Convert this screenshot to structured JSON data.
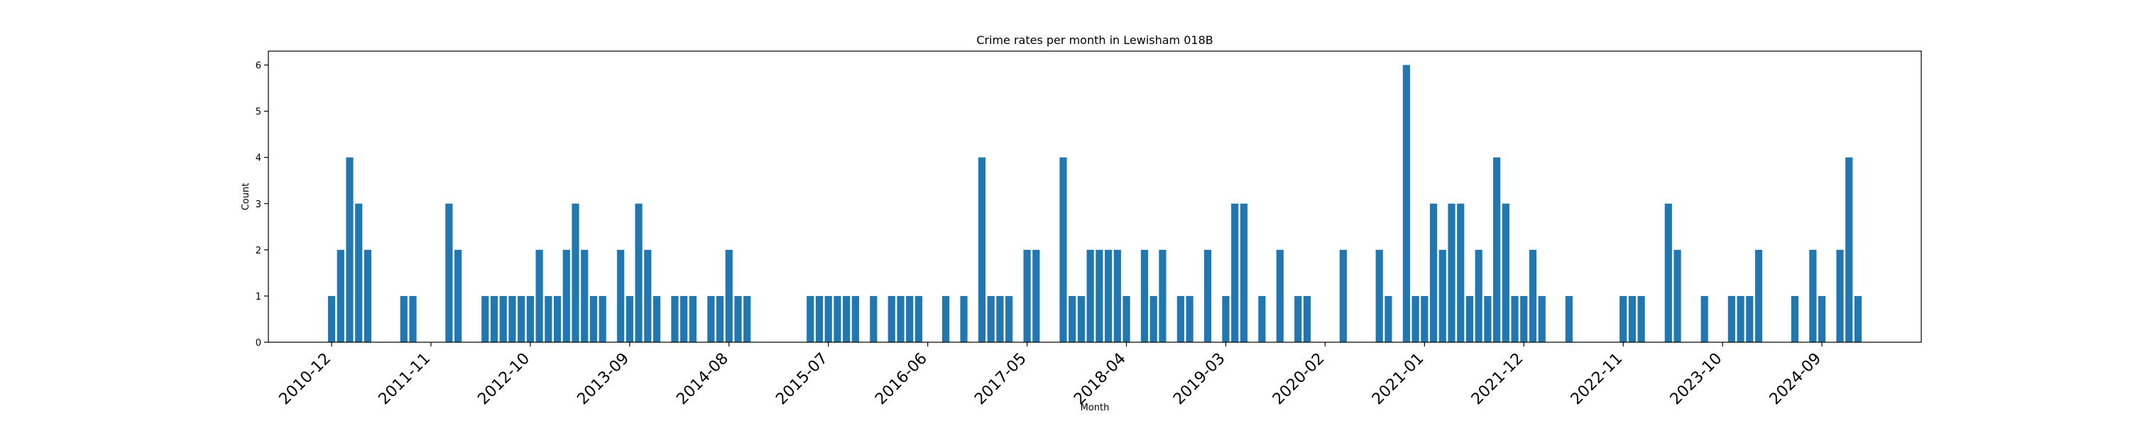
{
  "chart_data": {
    "type": "bar",
    "title": "Crime rates per month in Lewisham 018B",
    "xlabel": "Month",
    "ylabel": "Count",
    "ylim": [
      0,
      6.3
    ],
    "yticks": [
      0,
      1,
      2,
      3,
      4,
      5,
      6
    ],
    "xlim": [
      "2010-05",
      "2025-08"
    ],
    "xticks": [
      "2010-12",
      "2011-11",
      "2012-10",
      "2013-09",
      "2014-08",
      "2015-07",
      "2016-06",
      "2017-05",
      "2018-04",
      "2019-03",
      "2020-02",
      "2021-01",
      "2021-12",
      "2022-11",
      "2023-10",
      "2024-09"
    ],
    "grid": false,
    "color": "#1f77b4",
    "categories": [
      "2010-12",
      "2011-01",
      "2011-02",
      "2011-03",
      "2011-04",
      "2011-08",
      "2011-09",
      "2012-01",
      "2012-02",
      "2012-05",
      "2012-06",
      "2012-07",
      "2012-08",
      "2012-09",
      "2012-10",
      "2012-11",
      "2012-12",
      "2013-01",
      "2013-02",
      "2013-03",
      "2013-04",
      "2013-05",
      "2013-06",
      "2013-08",
      "2013-09",
      "2013-10",
      "2013-11",
      "2013-12",
      "2014-02",
      "2014-03",
      "2014-04",
      "2014-06",
      "2014-07",
      "2014-08",
      "2014-09",
      "2014-10",
      "2015-05",
      "2015-06",
      "2015-07",
      "2015-08",
      "2015-09",
      "2015-10",
      "2015-12",
      "2016-02",
      "2016-03",
      "2016-04",
      "2016-05",
      "2016-08",
      "2016-10",
      "2016-12",
      "2017-01",
      "2017-02",
      "2017-03",
      "2017-05",
      "2017-06",
      "2017-09",
      "2017-10",
      "2017-11",
      "2017-12",
      "2018-01",
      "2018-02",
      "2018-03",
      "2018-04",
      "2018-06",
      "2018-07",
      "2018-08",
      "2018-10",
      "2018-11",
      "2019-01",
      "2019-03",
      "2019-04",
      "2019-05",
      "2019-07",
      "2019-09",
      "2019-11",
      "2019-12",
      "2020-04",
      "2020-08",
      "2020-09",
      "2020-11",
      "2020-12",
      "2021-01",
      "2021-02",
      "2021-03",
      "2021-04",
      "2021-05",
      "2021-06",
      "2021-07",
      "2021-08",
      "2021-09",
      "2021-10",
      "2021-11",
      "2021-12",
      "2022-01",
      "2022-02",
      "2022-05",
      "2022-11",
      "2022-12",
      "2023-01",
      "2023-04",
      "2023-05",
      "2023-08",
      "2023-11",
      "2023-12",
      "2024-01",
      "2024-02",
      "2024-06",
      "2024-08",
      "2024-09",
      "2024-11",
      "2024-12",
      "2025-01"
    ],
    "values": [
      1,
      2,
      4,
      3,
      2,
      1,
      1,
      3,
      2,
      1,
      1,
      1,
      1,
      1,
      1,
      2,
      1,
      1,
      2,
      3,
      2,
      1,
      1,
      2,
      1,
      3,
      2,
      1,
      1,
      1,
      1,
      1,
      1,
      2,
      1,
      1,
      1,
      1,
      1,
      1,
      1,
      1,
      1,
      1,
      1,
      1,
      1,
      1,
      1,
      4,
      1,
      1,
      1,
      2,
      2,
      4,
      1,
      1,
      2,
      2,
      2,
      2,
      1,
      2,
      1,
      2,
      1,
      1,
      2,
      1,
      3,
      3,
      1,
      2,
      1,
      1,
      2,
      2,
      1,
      6,
      1,
      1,
      3,
      2,
      3,
      3,
      1,
      2,
      1,
      4,
      3,
      1,
      1,
      2,
      1,
      1,
      1,
      1,
      1,
      3,
      2,
      1,
      1,
      1,
      1,
      2,
      1,
      2,
      1,
      2,
      4,
      1
    ]
  }
}
